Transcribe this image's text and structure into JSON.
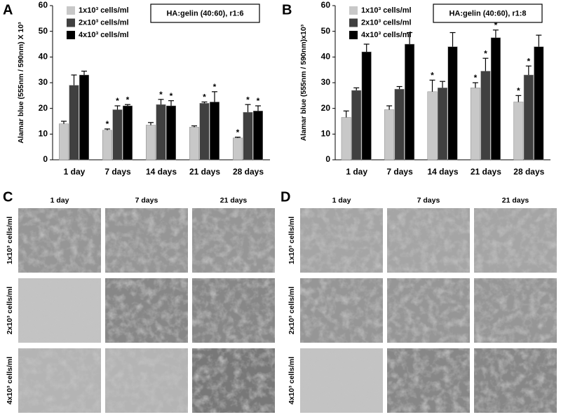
{
  "chart_data": [
    {
      "type": "bar",
      "panel": "A",
      "box_text": "HA:gelin (40:60), r1:6",
      "y_label": "Alamar blue (555nm / 590nm) X 10³",
      "categories": [
        "1 day",
        "7 days",
        "14 days",
        "21 days",
        "28 days"
      ],
      "series": [
        {
          "name": "1x10³ cells/ml",
          "color": "#c8c8c8",
          "values": [
            14,
            11.5,
            13.5,
            12.7,
            8.5
          ],
          "errors": [
            1,
            0.5,
            1,
            0.5,
            0.3
          ]
        },
        {
          "name": "2x10³ cells/ml",
          "color": "#404040",
          "values": [
            29,
            19.5,
            21.5,
            22,
            18.5
          ],
          "errors": [
            4,
            1.5,
            2,
            0.5,
            3
          ]
        },
        {
          "name": "4x10³ cells/ml",
          "color": "#000000",
          "values": [
            33,
            21,
            21,
            22.5,
            19
          ],
          "errors": [
            1.5,
            0.5,
            2,
            4,
            2
          ]
        }
      ],
      "annotations": [
        {
          "text": "*",
          "series": 0,
          "category": 1
        },
        {
          "text": "*",
          "series": 1,
          "category": 1
        },
        {
          "text": "*",
          "series": 2,
          "category": 1
        },
        {
          "text": "*",
          "series": 1,
          "category": 2
        },
        {
          "text": "*",
          "series": 2,
          "category": 2
        },
        {
          "text": "*",
          "series": 1,
          "category": 3
        },
        {
          "text": "*",
          "series": 2,
          "category": 3
        },
        {
          "text": "*",
          "series": 0,
          "category": 4
        },
        {
          "text": "*",
          "series": 1,
          "category": 4
        },
        {
          "text": "*",
          "series": 2,
          "category": 4
        }
      ],
      "ylim": [
        0,
        60
      ],
      "yticks": [
        0,
        10,
        20,
        30,
        40,
        50,
        60
      ]
    },
    {
      "type": "bar",
      "panel": "B",
      "box_text": "HA:gelin (40:60), r1:8",
      "y_label": "Alamar blue (555nm / 590nm)x10³",
      "categories": [
        "1 day",
        "7 days",
        "14 days",
        "21 days",
        "28 days"
      ],
      "series": [
        {
          "name": "1x10³ cells/ml",
          "color": "#c8c8c8",
          "values": [
            16.5,
            19.5,
            26.5,
            28,
            22.5
          ],
          "errors": [
            2.5,
            1.5,
            4.5,
            2,
            2.5
          ]
        },
        {
          "name": "2x10³ cells/ml",
          "color": "#404040",
          "values": [
            27,
            27.5,
            28,
            34.5,
            33
          ],
          "errors": [
            1,
            1,
            2.5,
            5,
            3.5
          ]
        },
        {
          "name": "4x10³ cells/ml",
          "color": "#000000",
          "values": [
            42,
            45,
            44,
            47.5,
            44
          ],
          "errors": [
            3,
            4.5,
            5.5,
            3,
            4.5
          ]
        }
      ],
      "annotations": [
        {
          "text": "*",
          "series": 0,
          "category": 2
        },
        {
          "text": "*",
          "series": 0,
          "category": 3
        },
        {
          "text": "*",
          "series": 1,
          "category": 3
        },
        {
          "text": "*",
          "series": 2,
          "category": 3
        },
        {
          "text": "*",
          "series": 0,
          "category": 4
        },
        {
          "text": "*",
          "series": 1,
          "category": 4
        }
      ],
      "ylim": [
        0,
        60
      ],
      "yticks": [
        0,
        10,
        20,
        30,
        40,
        50,
        60
      ]
    }
  ],
  "image_panels": [
    {
      "label": "C",
      "columns": [
        "1 day",
        "7 days",
        "21 days"
      ],
      "rows": [
        "1x10³ cells/ml",
        "2x10³ cells/ml",
        "4x10³ cells/ml"
      ]
    },
    {
      "label": "D",
      "columns": [
        "1 day",
        "7 days",
        "21 days"
      ],
      "rows": [
        "1x10³ cells/ml",
        "2x10³ cells/ml",
        "4x10³ cells/ml"
      ]
    }
  ]
}
